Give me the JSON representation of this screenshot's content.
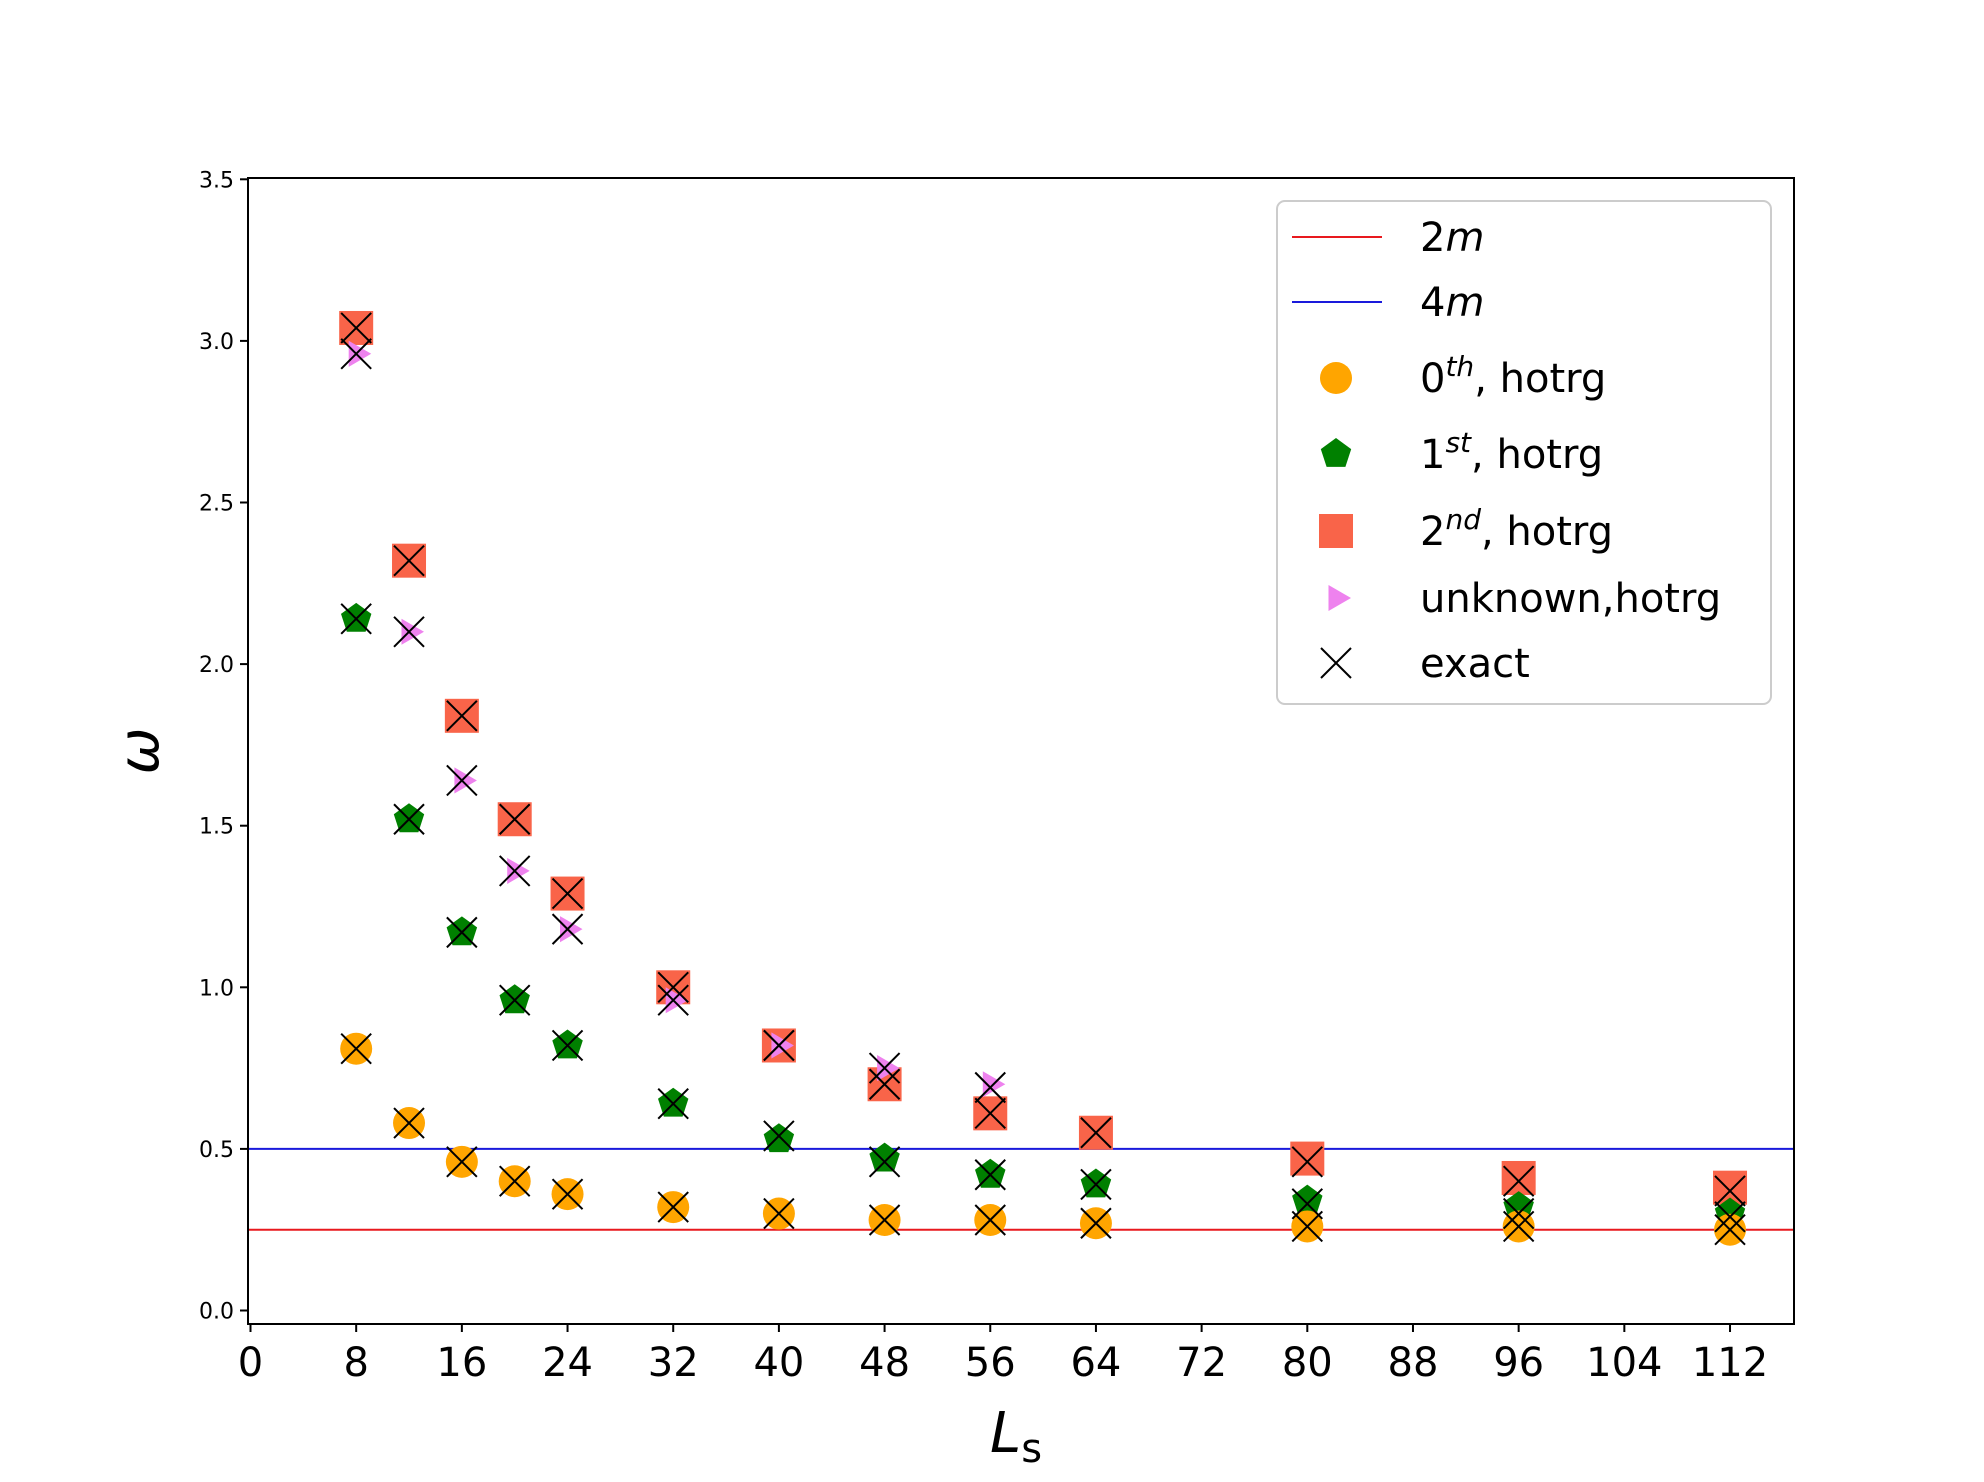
{
  "chart_data": {
    "type": "scatter",
    "title": "",
    "xlabel": "L",
    "xlabel_sub": "s",
    "ylabel": "ω",
    "xlim": [
      0,
      118
    ],
    "ylim": [
      -0.07,
      3.5
    ],
    "xticks": [
      0,
      8,
      16,
      24,
      32,
      40,
      48,
      56,
      64,
      72,
      80,
      88,
      96,
      104,
      112
    ],
    "xtick_labels": [
      "0",
      "8",
      "16",
      "24",
      "32",
      "40",
      "48",
      "56",
      "64",
      "72",
      "80",
      "88",
      "96",
      "104",
      "112"
    ],
    "yticks": [
      0.0,
      0.5,
      1.0,
      1.5,
      2.0,
      2.5,
      3.0,
      3.5
    ],
    "ytick_labels": [
      "0.0",
      "0.5",
      "1.0",
      "1.5",
      "2.0",
      "2.5",
      "3.0",
      "3.5"
    ],
    "hlines": [
      {
        "name": "2m",
        "label_base": "2",
        "label_italic": "m",
        "y": 0.25,
        "color": "#e8191e"
      },
      {
        "name": "4m",
        "label_base": "4",
        "label_italic": "m",
        "y": 0.5,
        "color": "#1a1adb"
      }
    ],
    "series": [
      {
        "name": "2nd, hotrg",
        "label_base": "2",
        "label_sup": "nd",
        "label_rest": ", hotrg",
        "marker": "square",
        "color": "#f96449",
        "x": [
          8,
          12,
          16,
          20,
          24,
          32,
          40,
          48,
          56,
          64,
          80,
          96,
          112
        ],
        "y": [
          3.04,
          2.32,
          1.84,
          1.52,
          1.29,
          1.0,
          0.82,
          0.7,
          0.61,
          0.55,
          0.47,
          0.41,
          0.38
        ]
      },
      {
        "name": "unknown,hotrg",
        "label_base": "unknown,hotrg",
        "label_sup": "",
        "label_rest": "",
        "marker": "triangle-right",
        "color": "#ee82ee",
        "x": [
          8,
          12,
          16,
          20,
          24,
          32,
          40,
          48,
          56
        ],
        "y": [
          2.96,
          2.1,
          1.64,
          1.36,
          1.18,
          0.96,
          0.82,
          0.75,
          0.7
        ]
      },
      {
        "name": "1st, hotrg",
        "label_base": "1",
        "label_sup": "st",
        "label_rest": ", hotrg",
        "marker": "pentagon",
        "color": "#008000",
        "x": [
          8,
          12,
          16,
          20,
          24,
          32,
          40,
          48,
          56,
          64,
          80,
          96,
          112
        ],
        "y": [
          2.14,
          1.52,
          1.17,
          0.96,
          0.82,
          0.64,
          0.53,
          0.47,
          0.42,
          0.39,
          0.34,
          0.32,
          0.3
        ]
      },
      {
        "name": "0th, hotrg",
        "label_base": "0",
        "label_sup": "th",
        "label_rest": ", hotrg",
        "marker": "circle",
        "color": "#ffa500",
        "x": [
          8,
          12,
          16,
          20,
          24,
          32,
          40,
          48,
          56,
          64,
          80,
          96,
          112
        ],
        "y": [
          0.81,
          0.58,
          0.46,
          0.4,
          0.36,
          0.32,
          0.3,
          0.28,
          0.28,
          0.27,
          0.26,
          0.26,
          0.25
        ]
      },
      {
        "name": "exact",
        "label_base": "exact",
        "label_sup": "",
        "label_rest": "",
        "marker": "x",
        "color": "#000000",
        "x": [
          8,
          12,
          16,
          20,
          24,
          32,
          40,
          48,
          56,
          64,
          80,
          96,
          112,
          8,
          12,
          16,
          20,
          24,
          32,
          40,
          48,
          56,
          64,
          80,
          96,
          112,
          8,
          12,
          16,
          20,
          24,
          32,
          40,
          48,
          56,
          8,
          12,
          16,
          20,
          24,
          32,
          40,
          48,
          56,
          64,
          80,
          96,
          112
        ],
        "y": [
          3.04,
          2.32,
          1.84,
          1.52,
          1.29,
          1.0,
          0.82,
          0.7,
          0.61,
          0.55,
          0.46,
          0.4,
          0.37,
          2.14,
          1.52,
          1.17,
          0.96,
          0.82,
          0.64,
          0.54,
          0.46,
          0.42,
          0.39,
          0.33,
          0.3,
          0.29,
          2.96,
          2.1,
          1.64,
          1.36,
          1.18,
          0.96,
          0.82,
          0.75,
          0.69,
          0.81,
          0.58,
          0.46,
          0.4,
          0.36,
          0.32,
          0.3,
          0.28,
          0.28,
          0.27,
          0.26,
          0.26,
          0.25
        ]
      }
    ],
    "legend": {
      "position": "top-right",
      "order": [
        "2m",
        "4m",
        "0th, hotrg",
        "1st, hotrg",
        "2nd, hotrg",
        "unknown,hotrg",
        "exact"
      ]
    }
  }
}
